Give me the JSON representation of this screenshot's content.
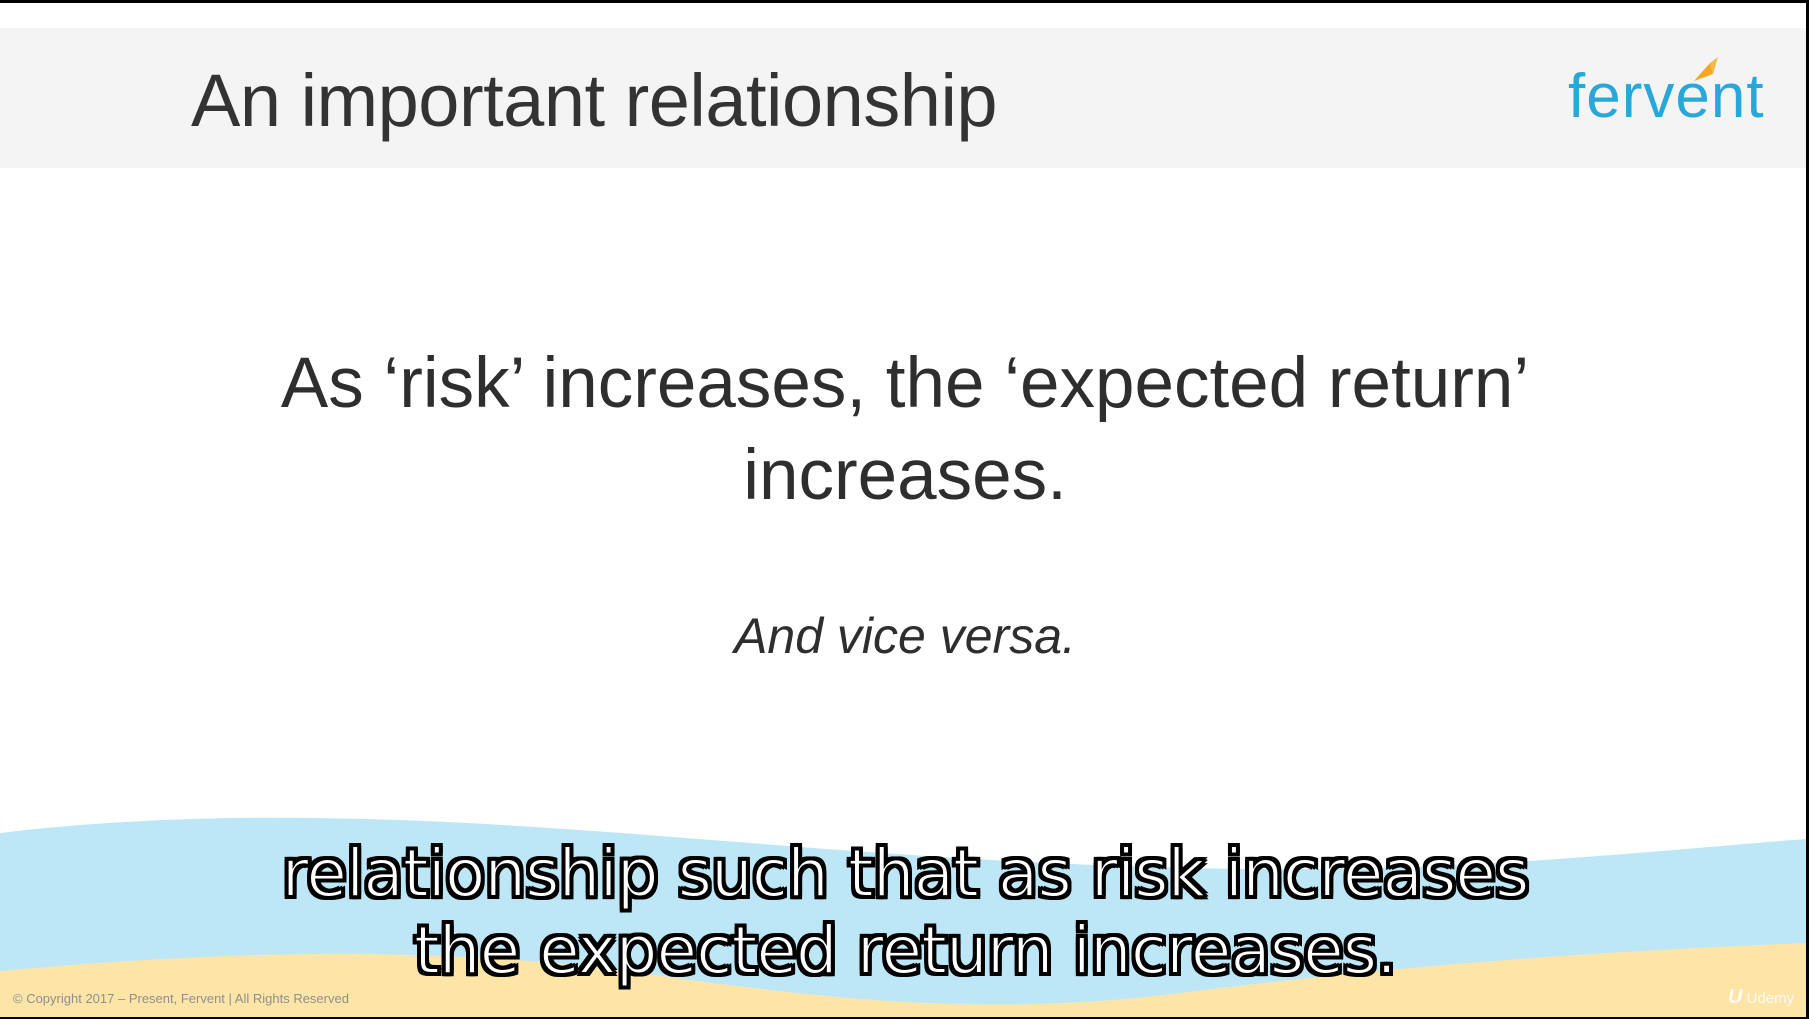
{
  "slide": {
    "title": "An important relationship",
    "logo_text": "fervent",
    "statement": "As ‘risk’ increases, the ‘expected return’ increases.",
    "sub_statement": "And vice versa.",
    "copyright": "© Copyright 2017 – Present,  Fervent | All Rights Reserved"
  },
  "subtitle": {
    "line1": "relationship such that as risk increases",
    "line2": "the expected return increases."
  },
  "watermark": {
    "icon": "udemy-logo-icon",
    "label": "Udemy"
  },
  "colors": {
    "header_band": "#f4f4f4",
    "logo_blue": "#2aa7d9",
    "logo_orange": "#f5a623",
    "wave_blue": "#bde7f6",
    "wave_sand": "#fde5a8",
    "text_dark": "#2e2e2e"
  }
}
